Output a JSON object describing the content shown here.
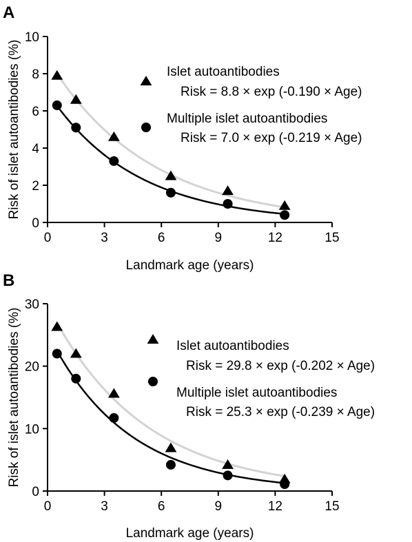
{
  "chart_data": [
    {
      "panel": "A",
      "type": "scatter",
      "xlabel": "Landmark age (years)",
      "ylabel": "Risk of islet autoantibodies (%)",
      "xlim": [
        0,
        15
      ],
      "ylim": [
        0,
        10
      ],
      "xticks": [
        "0",
        "3",
        "6",
        "9",
        "12",
        "15"
      ],
      "yticks": [
        "0",
        "2",
        "4",
        "6",
        "8",
        "10"
      ],
      "series": [
        {
          "name": "Islet autoantibodies",
          "formula": "Risk = 8.8 × exp (-0.190 × Age)",
          "marker": "triangle",
          "x": [
            0.5,
            1.5,
            3.5,
            6.5,
            9.5,
            12.5
          ],
          "y": [
            7.9,
            6.6,
            4.6,
            2.5,
            1.7,
            0.9
          ],
          "fit": {
            "a": 8.8,
            "b": -0.19
          },
          "fit_color": "#d3d3d3"
        },
        {
          "name": "Multiple islet autoantibodies",
          "formula": "Risk = 7.0 × exp (-0.219 × Age)",
          "marker": "circle",
          "x": [
            0.5,
            1.5,
            3.5,
            6.5,
            9.5,
            12.5
          ],
          "y": [
            6.3,
            5.1,
            3.3,
            1.6,
            1.0,
            0.4
          ],
          "fit": {
            "a": 7.0,
            "b": -0.219
          },
          "fit_color": "#000000"
        }
      ]
    },
    {
      "panel": "B",
      "type": "scatter",
      "xlabel": "Landmark age (years)",
      "ylabel": "Risk of islet autoantibodies (%)",
      "xlim": [
        0,
        15
      ],
      "ylim": [
        0,
        30
      ],
      "xticks": [
        "0",
        "3",
        "6",
        "9",
        "12",
        "15"
      ],
      "yticks": [
        "0",
        "10",
        "20",
        "30"
      ],
      "series": [
        {
          "name": "Islet autoantibodies",
          "formula": "Risk = 29.8 × exp (-0.202 × Age)",
          "marker": "triangle",
          "x": [
            0.5,
            1.5,
            3.5,
            6.5,
            9.5,
            12.5
          ],
          "y": [
            26.3,
            22.0,
            15.6,
            6.9,
            4.2,
            1.9
          ],
          "fit": {
            "a": 29.8,
            "b": -0.202
          },
          "fit_color": "#d3d3d3"
        },
        {
          "name": "Multiple islet autoantibodies",
          "formula": "Risk = 25.3 × exp (-0.239 × Age)",
          "marker": "circle",
          "x": [
            0.5,
            1.5,
            3.5,
            6.5,
            9.5,
            12.5
          ],
          "y": [
            22.0,
            18.0,
            11.7,
            4.2,
            2.5,
            1.1
          ],
          "fit": {
            "a": 25.3,
            "b": -0.239
          },
          "fit_color": "#000000"
        }
      ]
    }
  ]
}
